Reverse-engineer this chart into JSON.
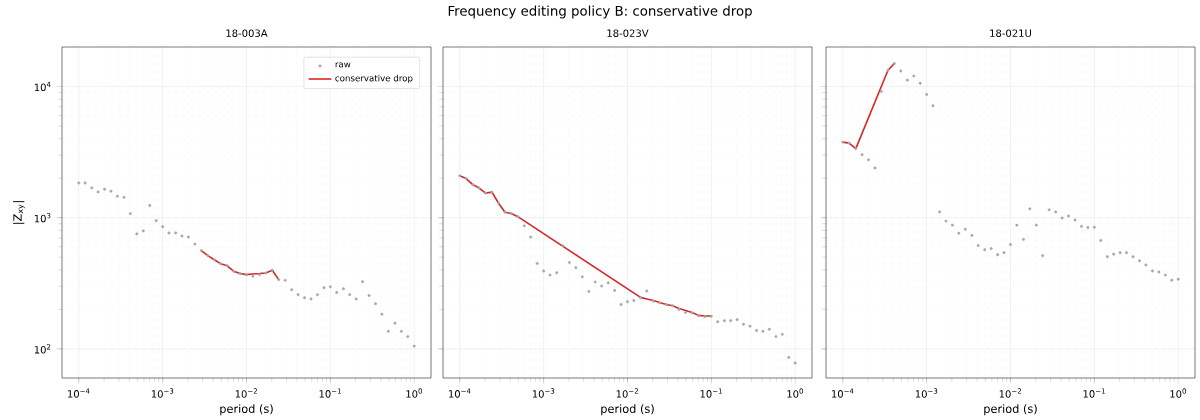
{
  "chart_data": [
    {
      "type": "scatter",
      "title": "18-003A",
      "annotations": [
        "Frequency editing policy B: conservative drop"
      ],
      "xlabel": "period (s)",
      "ylabel": "|Z$_{xy}$|",
      "log": "xy",
      "grid": true,
      "legend": "top right",
      "marker": "circle",
      "xlim": [
        6.31e-05,
        1.585
      ],
      "ylim": [
        60,
        20000
      ],
      "xticks": [
        {
          "value": 0.0001,
          "label": "10$^{−4}$"
        },
        {
          "value": 0.001,
          "label": "10$^{−3}$"
        },
        {
          "value": 0.01,
          "label": "10$^{−2}$"
        },
        {
          "value": 0.1,
          "label": "10$^{−1}$"
        },
        {
          "value": 1,
          "label": "10$^{0}$"
        }
      ],
      "yticks": [
        {
          "value": 100,
          "label": "10$^{2}$"
        },
        {
          "value": 1000,
          "label": "10$^{3}$"
        },
        {
          "value": 10000,
          "label": "10$^{4}$"
        }
      ],
      "x": [
        0.0001,
        0.000119,
        0.000143,
        0.00017,
        0.000203,
        0.000242,
        0.000289,
        0.000346,
        0.000412,
        0.000492,
        0.000588,
        0.000702,
        0.000838,
        0.001,
        0.00119,
        0.00143,
        0.0017,
        0.00203,
        0.00242,
        0.00289,
        0.00346,
        0.00412,
        0.00492,
        0.00588,
        0.00702,
        0.00838,
        0.01,
        0.0119,
        0.0143,
        0.017,
        0.0203,
        0.0242,
        0.0289,
        0.0346,
        0.0412,
        0.0492,
        0.0588,
        0.0702,
        0.0838,
        0.1,
        0.119,
        0.143,
        0.17,
        0.203,
        0.242,
        0.289,
        0.346,
        0.412,
        0.492,
        0.588,
        0.702,
        0.838,
        1
      ],
      "series": [
        {
          "name": "raw",
          "color": "#a6a6a6",
          "values": [
            1837,
            1837,
            1687,
            1570,
            1649,
            1592,
            1455,
            1429,
            1074,
            752,
            793,
            1239,
            948,
            852,
            765,
            765,
            725,
            712,
            629,
            561,
            514,
            478,
            446,
            430,
            391,
            375,
            368,
            357,
            368,
            379,
            398,
            337,
            333,
            282,
            259,
            245,
            240,
            259,
            292,
            297,
            269,
            287,
            259,
            240,
            325,
            255,
            221,
            184,
            136,
            157,
            136,
            124,
            105
          ]
        },
        {
          "name": "conservative drop",
          "type": "line",
          "marker": "none",
          "color": "#d62728",
          "x": [
            0.00289,
            0.00346,
            0.00412,
            0.00492,
            0.00588,
            0.00702,
            0.00838,
            0.01,
            0.0119,
            0.0143,
            0.017,
            0.0203,
            0.0242
          ],
          "values": [
            561,
            514,
            478,
            446,
            430,
            391,
            375,
            368,
            372,
            375,
            379,
            398,
            337
          ]
        }
      ]
    },
    {
      "type": "scatter",
      "title": "18-023V",
      "xlabel": "period (s)",
      "log": "xy",
      "grid": true,
      "marker": "circle",
      "tick_labels": "x",
      "xlim": [
        6.31e-05,
        1.585
      ],
      "ylim": [
        60,
        20000
      ],
      "xticks": [
        {
          "value": 0.0001,
          "label": "10$^{−4}$"
        },
        {
          "value": 0.001,
          "label": "10$^{−3}$"
        },
        {
          "value": 0.01,
          "label": "10$^{−2}$"
        },
        {
          "value": 0.1,
          "label": "10$^{−1}$"
        },
        {
          "value": 1,
          "label": "10$^{0}$"
        }
      ],
      "yticks": [
        {
          "value": 100,
          "label": null
        },
        {
          "value": 1000,
          "label": null
        },
        {
          "value": 10000,
          "label": null
        }
      ],
      "x": [
        0.0001,
        0.000119,
        0.000143,
        0.00017,
        0.000203,
        0.000242,
        0.000289,
        0.000346,
        0.000412,
        0.000492,
        0.000588,
        0.000702,
        0.000838,
        0.001,
        0.00119,
        0.00143,
        0.0017,
        0.00203,
        0.00242,
        0.00289,
        0.00346,
        0.00412,
        0.00492,
        0.00588,
        0.00702,
        0.00838,
        0.01,
        0.0119,
        0.0143,
        0.017,
        0.0203,
        0.0242,
        0.0289,
        0.0346,
        0.0412,
        0.0492,
        0.0588,
        0.0702,
        0.0838,
        0.1,
        0.119,
        0.143,
        0.17,
        0.203,
        0.242,
        0.289,
        0.346,
        0.412,
        0.492,
        0.588,
        0.702,
        0.838,
        1
      ],
      "series": [
        {
          "color": "#a6a6a6",
          "values": [
            2085,
            1987,
            1785,
            1683,
            1538,
            1567,
            1294,
            1101,
            1075,
            1018,
            866,
            711,
            447,
            392,
            365,
            380,
            610,
            455,
            416,
            354,
            274,
            323,
            301,
            318,
            279,
            218,
            229,
            234,
            245,
            276,
            232,
            224,
            218,
            213,
            200,
            189,
            188,
            179,
            176,
            177,
            161,
            164,
            164,
            167,
            154,
            149,
            138,
            136,
            141,
            124,
            129,
            86,
            78
          ]
        },
        {
          "type": "line",
          "marker": "none",
          "color": "#d62728",
          "x": [
            0.0001,
            0.000119,
            0.000143,
            0.00017,
            0.000203,
            0.000242,
            0.000289,
            0.000346,
            0.000412,
            0.000492,
            0.0143,
            0.017,
            0.0203,
            0.0242,
            0.0289,
            0.0346,
            0.0412,
            0.0492,
            0.0588,
            0.0702,
            0.0838,
            0.1
          ],
          "values": [
            2085,
            1987,
            1785,
            1683,
            1538,
            1567,
            1294,
            1101,
            1075,
            1018,
            247,
            240,
            234,
            226,
            218,
            213,
            203,
            196,
            189,
            180,
            178,
            178
          ]
        }
      ]
    },
    {
      "type": "scatter",
      "title": "18-021U",
      "xlabel": "period (s)",
      "log": "xy",
      "grid": true,
      "marker": "circle",
      "tick_labels": "x",
      "xlim": [
        6.31e-05,
        1.585
      ],
      "ylim": [
        60,
        20000
      ],
      "xticks": [
        {
          "value": 0.0001,
          "label": "10$^{−4}$"
        },
        {
          "value": 0.001,
          "label": "10$^{−3}$"
        },
        {
          "value": 0.01,
          "label": "10$^{−2}$"
        },
        {
          "value": 0.1,
          "label": "10$^{−1}$"
        },
        {
          "value": 1,
          "label": "10$^{0}$"
        }
      ],
      "yticks": [
        {
          "value": 100,
          "label": null
        },
        {
          "value": 1000,
          "label": null
        },
        {
          "value": 10000,
          "label": null
        }
      ],
      "x": [
        0.0001,
        0.000119,
        0.000143,
        0.00017,
        0.000203,
        0.000242,
        0.000289,
        0.000346,
        0.000412,
        0.000492,
        0.000588,
        0.000702,
        0.000838,
        0.001,
        0.00119,
        0.00143,
        0.0017,
        0.00203,
        0.00242,
        0.00289,
        0.00346,
        0.00412,
        0.00492,
        0.00588,
        0.00702,
        0.00838,
        0.01,
        0.0119,
        0.0143,
        0.017,
        0.0203,
        0.0242,
        0.0289,
        0.0346,
        0.0412,
        0.0492,
        0.0588,
        0.0702,
        0.0838,
        0.1,
        0.119,
        0.143,
        0.17,
        0.203,
        0.242,
        0.289,
        0.346,
        0.412,
        0.492,
        0.588,
        0.702,
        0.838,
        1
      ],
      "series": [
        {
          "color": "#a6a6a6",
          "values": [
            3767,
            3700,
            3363,
            3020,
            2760,
            2393,
            9160,
            13280,
            14960,
            13120,
            11170,
            12000,
            10590,
            8690,
            7130,
            1107,
            942,
            877,
            760,
            816,
            733,
            613,
            570,
            581,
            522,
            541,
            624,
            877,
            682,
            1168,
            877,
            512,
            1147,
            1107,
            994,
            1030,
            959,
            857,
            841,
            846,
            670,
            504,
            527,
            541,
            541,
            504,
            469,
            436,
            392,
            385,
            365,
            334,
            339
          ]
        },
        {
          "type": "line",
          "marker": "none",
          "color": "#d62728",
          "x": [
            0.0001,
            0.000119,
            0.000143,
            0.000346,
            0.000412
          ],
          "values": [
            3767,
            3700,
            3363,
            13280,
            14960
          ]
        }
      ]
    }
  ]
}
